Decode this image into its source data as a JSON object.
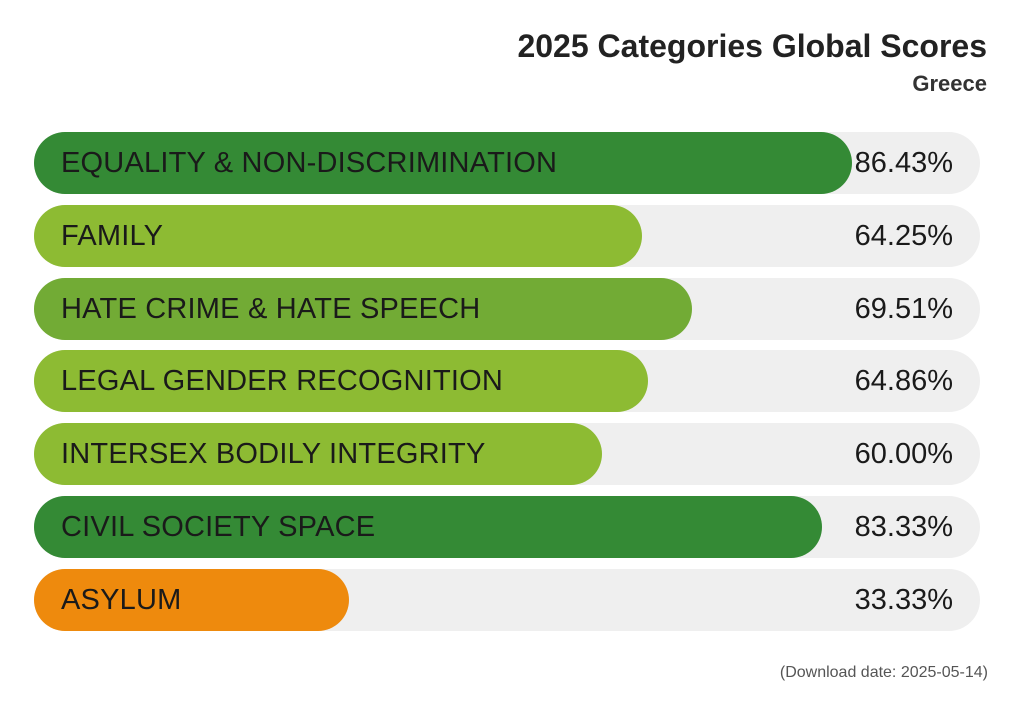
{
  "chart_data": {
    "type": "bar",
    "orientation": "horizontal",
    "title": "2025 Categories Global Scores",
    "subtitle": "Greece",
    "xlim": [
      0,
      100
    ],
    "value_suffix": "%",
    "categories": [
      "EQUALITY & NON-DISCRIMINATION",
      "FAMILY",
      "HATE CRIME & HATE SPEECH",
      "LEGAL GENDER RECOGNITION",
      "INTERSEX BODILY INTEGRITY",
      "CIVIL SOCIETY SPACE",
      "ASYLUM"
    ],
    "values": [
      86.43,
      64.25,
      69.51,
      64.86,
      60.0,
      83.33,
      33.33
    ],
    "value_labels": [
      "86.43%",
      "64.25%",
      "69.51%",
      "64.86%",
      "60.00%",
      "83.33%",
      "33.33%"
    ],
    "bar_colors": [
      "#348a35",
      "#8dbb33",
      "#72ab35",
      "#8dbb33",
      "#8dbb33",
      "#348a35",
      "#ee8a0d"
    ],
    "track_color": "#efefef"
  },
  "footnote": "(Download date: 2025-05-14)"
}
